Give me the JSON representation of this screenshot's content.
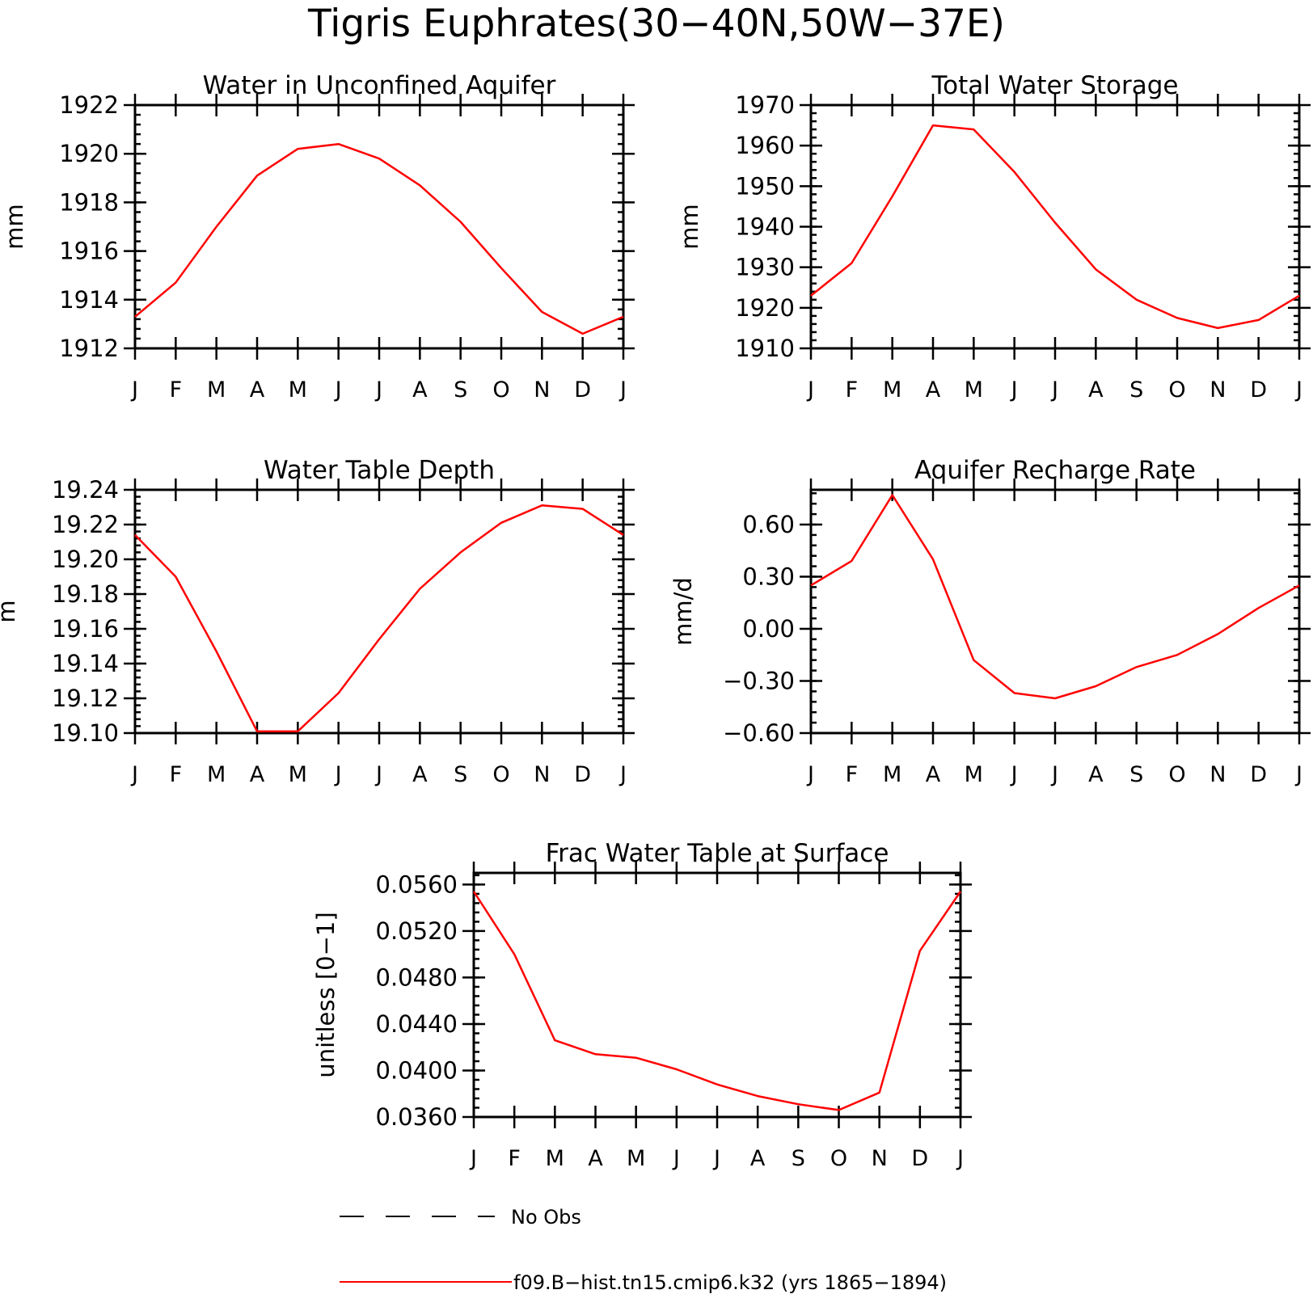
{
  "figure_title": "Tigris Euphrates(30−40N,50W−37E)",
  "colors": {
    "model": "#ff0000",
    "obs": "#000000",
    "axes": "#000000"
  },
  "legend": {
    "obs_label": "No Obs",
    "model_label": "f09.B−hist.tn15.cmip6.k32 (yrs 1865−1894)"
  },
  "chart_data": [
    {
      "type": "line",
      "title": "Water in Unconfined Aquifer",
      "ylabel": "mm",
      "xlabel": "",
      "ylim": [
        1912,
        1922
      ],
      "yticks": [
        1912,
        1914,
        1916,
        1918,
        1920,
        1922
      ],
      "ytick_labels": [
        "1912",
        "1914",
        "1916",
        "1918",
        "1920",
        "1922"
      ],
      "categories": [
        "J",
        "F",
        "M",
        "A",
        "M",
        "J",
        "J",
        "A",
        "S",
        "O",
        "N",
        "D",
        "J"
      ],
      "series": [
        {
          "name": "f09.B−hist.tn15.cmip6.k32 (yrs 1865−1894)",
          "values": [
            1913.3,
            1914.7,
            1917.0,
            1919.1,
            1920.2,
            1920.4,
            1919.8,
            1918.7,
            1917.2,
            1915.3,
            1913.5,
            1912.6,
            1913.3
          ]
        }
      ]
    },
    {
      "type": "line",
      "title": "Total Water Storage",
      "ylabel": "mm",
      "xlabel": "",
      "ylim": [
        1910,
        1970
      ],
      "yticks": [
        1910,
        1920,
        1930,
        1940,
        1950,
        1960,
        1970
      ],
      "ytick_labels": [
        "1910",
        "1920",
        "1930",
        "1940",
        "1950",
        "1960",
        "1970"
      ],
      "categories": [
        "J",
        "F",
        "M",
        "A",
        "M",
        "J",
        "J",
        "A",
        "S",
        "O",
        "N",
        "D",
        "J"
      ],
      "series": [
        {
          "name": "f09.B−hist.tn15.cmip6.k32 (yrs 1865−1894)",
          "values": [
            1923,
            1931,
            1947.5,
            1965,
            1964,
            1953.5,
            1941,
            1929.5,
            1922,
            1917.5,
            1915,
            1917,
            1923
          ]
        }
      ]
    },
    {
      "type": "line",
      "title": "Water Table Depth",
      "ylabel": "m",
      "xlabel": "",
      "ylim": [
        19.1,
        19.24
      ],
      "yticks": [
        19.1,
        19.12,
        19.14,
        19.16,
        19.18,
        19.2,
        19.22,
        19.24
      ],
      "ytick_labels": [
        "19.10",
        "19.12",
        "19.14",
        "19.16",
        "19.18",
        "19.20",
        "19.22",
        "19.24"
      ],
      "categories": [
        "J",
        "F",
        "M",
        "A",
        "M",
        "J",
        "J",
        "A",
        "S",
        "O",
        "N",
        "D",
        "J"
      ],
      "series": [
        {
          "name": "f09.B−hist.tn15.cmip6.k32 (yrs 1865−1894)",
          "values": [
            19.214,
            19.19,
            19.147,
            19.101,
            19.101,
            19.123,
            19.154,
            19.183,
            19.204,
            19.221,
            19.231,
            19.229,
            19.214
          ]
        }
      ]
    },
    {
      "type": "line",
      "title": "Aquifer Recharge Rate",
      "ylabel": "mm/d",
      "xlabel": "",
      "ylim": [
        -0.6,
        0.8
      ],
      "yticks": [
        -0.6,
        -0.3,
        0.0,
        0.3,
        0.6
      ],
      "ytick_labels": [
        "−0.60",
        "−0.30",
        "0.00",
        "0.30",
        "0.60"
      ],
      "categories": [
        "J",
        "F",
        "M",
        "A",
        "M",
        "J",
        "J",
        "A",
        "S",
        "O",
        "N",
        "D",
        "J"
      ],
      "series": [
        {
          "name": "f09.B−hist.tn15.cmip6.k32 (yrs 1865−1894)",
          "values": [
            0.25,
            0.39,
            0.77,
            0.4,
            -0.18,
            -0.37,
            -0.4,
            -0.33,
            -0.22,
            -0.15,
            -0.03,
            0.12,
            0.25
          ]
        }
      ]
    },
    {
      "type": "line",
      "title": "Frac Water Table at Surface",
      "ylabel": "unitless [0−1]",
      "xlabel": "",
      "ylim": [
        0.036,
        0.057
      ],
      "yticks": [
        0.036,
        0.04,
        0.044,
        0.048,
        0.052,
        0.056
      ],
      "ytick_labels": [
        "0.0360",
        "0.0400",
        "0.0440",
        "0.0480",
        "0.0520",
        "0.0560"
      ],
      "categories": [
        "J",
        "F",
        "M",
        "A",
        "M",
        "J",
        "J",
        "A",
        "S",
        "O",
        "N",
        "D",
        "J"
      ],
      "series": [
        {
          "name": "f09.B−hist.tn15.cmip6.k32 (yrs 1865−1894)",
          "values": [
            0.0554,
            0.05,
            0.0426,
            0.0414,
            0.0411,
            0.0401,
            0.0388,
            0.0378,
            0.0371,
            0.0366,
            0.0381,
            0.0503,
            0.0554
          ]
        }
      ]
    }
  ]
}
